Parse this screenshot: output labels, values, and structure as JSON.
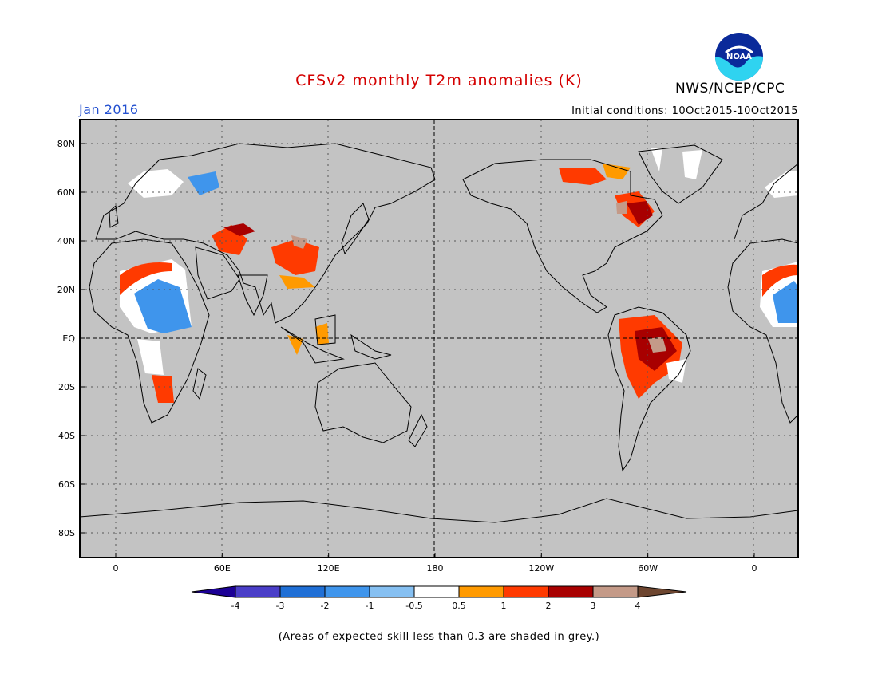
{
  "header": {
    "title": "CFSv2 monthly T2m anomalies (K)",
    "agency": "NWS/NCEP/CPC",
    "month": "Jan 2016",
    "initial_conditions": "Initial conditions: 10Oct2015-10Oct2015"
  },
  "logo": {
    "text": "NOAA"
  },
  "map": {
    "lat_labels": [
      {
        "lat": 80,
        "label": "80N"
      },
      {
        "lat": 60,
        "label": "60N"
      },
      {
        "lat": 40,
        "label": "40N"
      },
      {
        "lat": 20,
        "label": "20N"
      },
      {
        "lat": 0,
        "label": "EQ"
      },
      {
        "lat": -20,
        "label": "20S"
      },
      {
        "lat": -40,
        "label": "40S"
      },
      {
        "lat": -60,
        "label": "60S"
      },
      {
        "lat": -80,
        "label": "80S"
      }
    ],
    "lon_labels": [
      {
        "lon": 0,
        "label": "0"
      },
      {
        "lon": 60,
        "label": "60E"
      },
      {
        "lon": 120,
        "label": "120E"
      },
      {
        "lon": 180,
        "label": "180"
      },
      {
        "lon": 240,
        "label": "120W"
      },
      {
        "lon": 300,
        "label": "60W"
      },
      {
        "lon": 360,
        "label": "0"
      }
    ],
    "background_color": "#c3c3c3"
  },
  "colorbar": {
    "ticks": [
      "-4",
      "-3",
      "-2",
      "-1",
      "-0.5",
      "0.5",
      "1",
      "2",
      "3",
      "4"
    ],
    "colors": [
      "#1c0096",
      "#4a3ec8",
      "#1f6fd6",
      "#3f95ec",
      "#86c0f2",
      "#ffffff",
      "#ff9a00",
      "#ff3a00",
      "#a80000",
      "#c49a88",
      "#6e4630"
    ]
  },
  "footnote": "(Areas of expected skill less than 0.3 are shaded in grey.)"
}
